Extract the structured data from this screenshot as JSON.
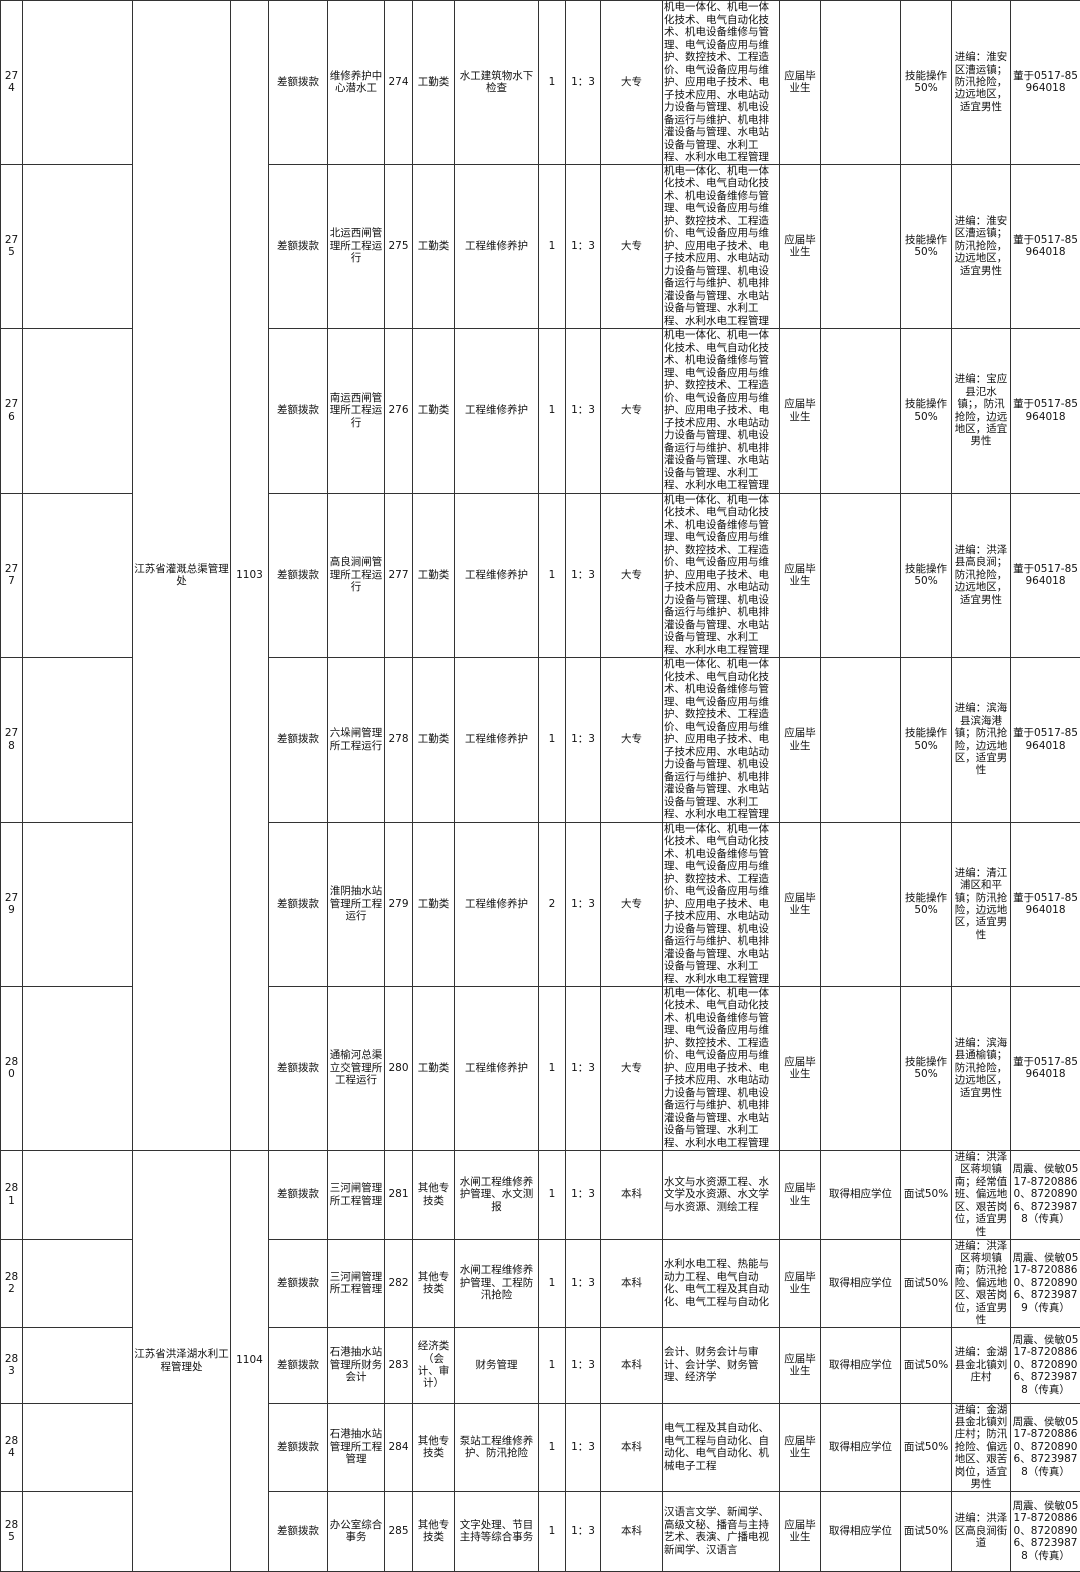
{
  "units": [
    {
      "name": "江苏省灌溉总渠管理处",
      "code": "1103"
    },
    {
      "name": "江苏省洪泽湖水利工程管理处",
      "code": "1104"
    }
  ],
  "rows": [
    {
      "no": "274",
      "unit": 0,
      "funding": "差额拨款",
      "position": "维修养护中心潜水工",
      "code": "274",
      "category": "工勤类",
      "description": "水工建筑物水下检查",
      "count": "1",
      "ratio": "1：3",
      "education": "大专",
      "major": "机电一体化、机电一体化技术、电气自动化技术、机电设备维修与管理、电气设备应用与维护、数控技术、工程造价、电气设备应用与维护、应用电子技术、电子技术应用、水电站动力设备与管理、机电设备运行与维护、机电排灌设备与管理、水电站设备与管理、水利工程、水利水电工程管理",
      "source": "应届毕业生",
      "degree": "",
      "exam": "技能操作50%",
      "note": "进编：淮安区漕运镇；防汛抢险，边远地区，适宜男性",
      "contact": "董于0517-85964018"
    },
    {
      "no": "275",
      "unit": 0,
      "funding": "差额拨款",
      "position": "北运西闸管理所工程运行",
      "code": "275",
      "category": "工勤类",
      "description": "工程维修养护",
      "count": "1",
      "ratio": "1：3",
      "education": "大专",
      "major": "机电一体化、机电一体化技术、电气自动化技术、机电设备维修与管理、电气设备应用与维护、数控技术、工程造价、电气设备应用与维护、应用电子技术、电子技术应用、水电站动力设备与管理、机电设备运行与维护、机电排灌设备与管理、水电站设备与管理、水利工程、水利水电工程管理",
      "source": "应届毕业生",
      "degree": "",
      "exam": "技能操作50%",
      "note": "进编：淮安区漕运镇；防汛抢险，边远地区，适宜男性",
      "contact": "董于0517-85964018"
    },
    {
      "no": "276",
      "unit": 0,
      "funding": "差额拨款",
      "position": "南运西闸管理所工程运行",
      "code": "276",
      "category": "工勤类",
      "description": "工程维修养护",
      "count": "1",
      "ratio": "1：3",
      "education": "大专",
      "major": "机电一体化、机电一体化技术、电气自动化技术、机电设备维修与管理、电气设备应用与维护、数控技术、工程造价、电气设备应用与维护、应用电子技术、电子技术应用、水电站动力设备与管理、机电设备运行与维护、机电排灌设备与管理、水电站设备与管理、水利工程、水利水电工程管理",
      "source": "应届毕业生",
      "degree": "",
      "exam": "技能操作50%",
      "note": "进编：宝应县氾水镇；，防汛抢险，边远地区，适宜男性",
      "contact": "董于0517-85964018"
    },
    {
      "no": "277",
      "unit": 0,
      "funding": "差额拨款",
      "position": "高良涧闸管理所工程运行",
      "code": "277",
      "category": "工勤类",
      "description": "工程维修养护",
      "count": "1",
      "ratio": "1：3",
      "education": "大专",
      "major": "机电一体化、机电一体化技术、电气自动化技术、机电设备维修与管理、电气设备应用与维护、数控技术、工程造价、电气设备应用与维护、应用电子技术、电子技术应用、水电站动力设备与管理、机电设备运行与维护、机电排灌设备与管理、水电站设备与管理、水利工程、水利水电工程管理",
      "source": "应届毕业生",
      "degree": "",
      "exam": "技能操作50%",
      "note": "进编：洪泽县高良涧；防汛抢险，边远地区，适宜男性",
      "contact": "董于0517-85964018"
    },
    {
      "no": "278",
      "unit": 0,
      "funding": "差额拨款",
      "position": "六垛闸管理所工程运行",
      "code": "278",
      "category": "工勤类",
      "description": "工程维修养护",
      "count": "1",
      "ratio": "1：3",
      "education": "大专",
      "major": "机电一体化、机电一体化技术、电气自动化技术、机电设备维修与管理、电气设备应用与维护、数控技术、工程造价、电气设备应用与维护、应用电子技术、电子技术应用、水电站动力设备与管理、机电设备运行与维护、机电排灌设备与管理、水电站设备与管理、水利工程、水利水电工程管理",
      "source": "应届毕业生",
      "degree": "",
      "exam": "技能操作50%",
      "note": "进编：滨海县滨海港镇；防汛抢险，边远地区，适宜男性",
      "contact": "董于0517-85964018"
    },
    {
      "no": "279",
      "unit": 0,
      "funding": "差额拨款",
      "position": "淮阴抽水站管理所工程运行",
      "code": "279",
      "category": "工勤类",
      "description": "工程维修养护",
      "count": "2",
      "ratio": "1：3",
      "education": "大专",
      "major": "机电一体化、机电一体化技术、电气自动化技术、机电设备维修与管理、电气设备应用与维护、数控技术、工程造价、电气设备应用与维护、应用电子技术、电子技术应用、水电站动力设备与管理、机电设备运行与维护、机电排灌设备与管理、水电站设备与管理、水利工程、水利水电工程管理",
      "source": "应届毕业生",
      "degree": "",
      "exam": "技能操作50%",
      "note": "进编：清江浦区和平镇；防汛抢险，边远地区，适宜男性",
      "contact": "董于0517-85964018"
    },
    {
      "no": "280",
      "unit": 0,
      "funding": "差额拨款",
      "position": "通榆河总渠立交管理所工程运行",
      "code": "280",
      "category": "工勤类",
      "description": "工程维修养护",
      "count": "1",
      "ratio": "1：3",
      "education": "大专",
      "major": "机电一体化、机电一体化技术、电气自动化技术、机电设备维修与管理、电气设备应用与维护、数控技术、工程造价、电气设备应用与维护、应用电子技术、电子技术应用、水电站动力设备与管理、机电设备运行与维护、机电排灌设备与管理、水电站设备与管理、水利工程、水利水电工程管理",
      "source": "应届毕业生",
      "degree": "",
      "exam": "技能操作50%",
      "note": "进编：滨海县通榆镇；防汛抢险，边远地区，适宜男性",
      "contact": "董于0517-85964018"
    },
    {
      "no": "281",
      "unit": 1,
      "funding": "差额拨款",
      "position": "三河闸管理所工程管理",
      "code": "281",
      "category": "其他专技类",
      "description": "水闸工程维修养护管理、水文测报",
      "count": "1",
      "ratio": "1：3",
      "education": "本科",
      "major": "水文与水资源工程、水文学及水资源、水文学与水资源、测绘工程",
      "source": "应届毕业生",
      "degree": "取得相应学位",
      "exam": "面试50%",
      "note": "进编：洪泽区蒋坝镇南；经常值班、偏远地区、艰苦岗位，适宜男性",
      "contact": "周震、侯敏0517-87208860、87208906、87239878（传真）"
    },
    {
      "no": "282",
      "unit": 1,
      "funding": "差额拨款",
      "position": "三河闸管理所工程管理",
      "code": "282",
      "category": "其他专技类",
      "description": "水闸工程维修养护管理、工程防汛抢险",
      "count": "1",
      "ratio": "1：3",
      "education": "本科",
      "major": "水利水电工程、热能与动力工程、电气自动化、电气工程及其自动化、电气工程与自动化",
      "source": "应届毕业生",
      "degree": "取得相应学位",
      "exam": "面试50%",
      "note": "进编：洪泽区蒋坝镇南；防汛抢险、偏远地区、艰苦岗位，适宜男性",
      "contact": "周震、侯敏0517-87208860、87208906、87239879（传真）"
    },
    {
      "no": "283",
      "unit": 1,
      "funding": "差额拨款",
      "position": "石港抽水站管理所财务会计",
      "code": "283",
      "category": "经济类（会计、审计）",
      "description": "财务管理",
      "count": "1",
      "ratio": "1：3",
      "education": "本科",
      "major": "会计、财务会计与审计、会计学、财务管理、经济学",
      "source": "应届毕业生",
      "degree": "取得相应学位",
      "exam": "面试50%",
      "note": "进编：金湖县金北镇刘庄村",
      "contact": "周震、侯敏0517-87208860、87208906、87239878（传真）"
    },
    {
      "no": "284",
      "unit": 1,
      "funding": "差额拨款",
      "position": "石港抽水站管理所工程管理",
      "code": "284",
      "category": "其他专技类",
      "description": "泵站工程维修养护、防汛抢险",
      "count": "1",
      "ratio": "1：3",
      "education": "本科",
      "major": "电气工程及其自动化、电气工程与自动化、自动化、电气自动化、机械电子工程",
      "source": "应届毕业生",
      "degree": "取得相应学位",
      "exam": "面试50%",
      "note": "进编：金湖县金北镇刘庄村；防汛抢险、偏远地区、艰苦岗位，适宜男性",
      "contact": "周震、侯敏0517-87208860、87208906、87239878（传真）"
    },
    {
      "no": "285",
      "unit": 1,
      "funding": "差额拨款",
      "position": "办公室综合事务",
      "code": "285",
      "category": "其他专技类",
      "description": "文字处理、节目主持等综合事务",
      "count": "1",
      "ratio": "1：3",
      "education": "本科",
      "major": "汉语言文学、新闻学、高级文秘、播音与主持艺术、表演、广播电视新闻学、汉语言",
      "source": "应届毕业生",
      "degree": "取得相应学位",
      "exam": "面试50%",
      "note": "进编：洪泽区高良涧街道",
      "contact": "周震、侯敏0517-87208860、87208906、87239878（传真）"
    }
  ]
}
